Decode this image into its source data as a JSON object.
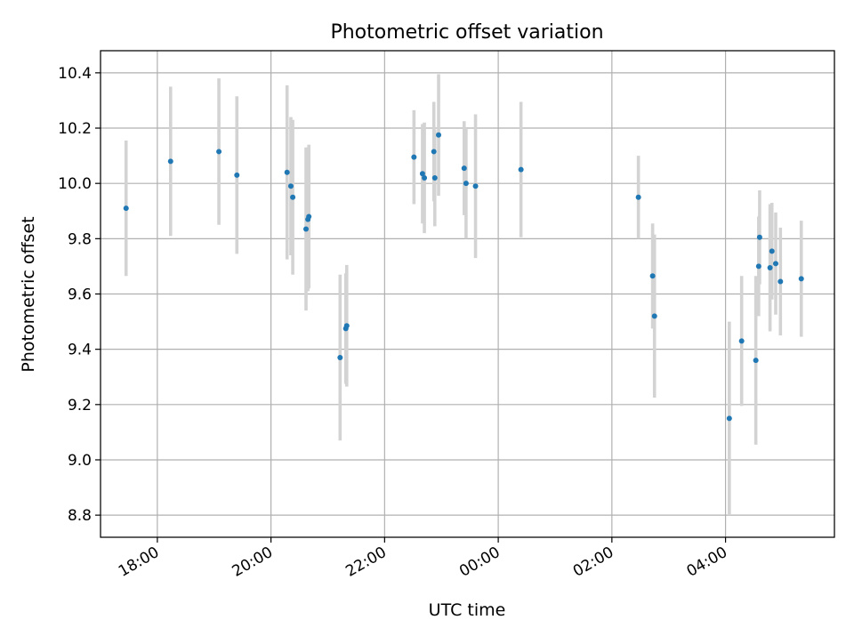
{
  "chart_data": {
    "type": "scatter",
    "title": "Photometric offset variation",
    "xlabel": "UTC time",
    "ylabel": "Photometric offset",
    "x_axis": {
      "kind": "time",
      "start": "2000-01-01T17:00",
      "end": "2000-01-02T05:55",
      "ticks": [
        {
          "t": "2000-01-01T18:00",
          "label": "18:00"
        },
        {
          "t": "2000-01-01T20:00",
          "label": "20:00"
        },
        {
          "t": "2000-01-01T22:00",
          "label": "22:00"
        },
        {
          "t": "2000-01-02T00:00",
          "label": "00:00"
        },
        {
          "t": "2000-01-02T02:00",
          "label": "02:00"
        },
        {
          "t": "2000-01-02T04:00",
          "label": "04:00"
        }
      ]
    },
    "ylim": [
      8.72,
      10.48
    ],
    "yticks": [
      "8.8",
      "9.0",
      "9.2",
      "9.4",
      "9.6",
      "9.8",
      "10.0",
      "10.2",
      "10.4"
    ],
    "grid": true,
    "colors": {
      "point": "#1f77b4",
      "errorbar": "#d3d3d3",
      "grid": "#b0b0b0"
    },
    "points": [
      {
        "t": "2000-01-01T17:27",
        "y": 9.91,
        "err": 0.245
      },
      {
        "t": "2000-01-01T18:14",
        "y": 10.08,
        "err": 0.27
      },
      {
        "t": "2000-01-01T19:05",
        "y": 10.115,
        "err": 0.265
      },
      {
        "t": "2000-01-01T19:24",
        "y": 10.03,
        "err": 0.285
      },
      {
        "t": "2000-01-01T20:17",
        "y": 10.04,
        "err": 0.315
      },
      {
        "t": "2000-01-01T20:21",
        "y": 9.99,
        "err": 0.25
      },
      {
        "t": "2000-01-01T20:23",
        "y": 9.95,
        "err": 0.28
      },
      {
        "t": "2000-01-01T20:37",
        "y": 9.835,
        "err": 0.295
      },
      {
        "t": "2000-01-01T20:39",
        "y": 9.87,
        "err": 0.26
      },
      {
        "t": "2000-01-01T20:40",
        "y": 9.88,
        "err": 0.26
      },
      {
        "t": "2000-01-01T21:13",
        "y": 9.37,
        "err": 0.3
      },
      {
        "t": "2000-01-01T21:19",
        "y": 9.475,
        "err": 0.2
      },
      {
        "t": "2000-01-01T21:20",
        "y": 9.485,
        "err": 0.22
      },
      {
        "t": "2000-01-01T22:31",
        "y": 10.095,
        "err": 0.17
      },
      {
        "t": "2000-01-01T22:40",
        "y": 10.035,
        "err": 0.18
      },
      {
        "t": "2000-01-01T22:42",
        "y": 10.02,
        "err": 0.2
      },
      {
        "t": "2000-01-01T22:52",
        "y": 10.115,
        "err": 0.18
      },
      {
        "t": "2000-01-01T22:53",
        "y": 10.02,
        "err": 0.175
      },
      {
        "t": "2000-01-01T22:57",
        "y": 10.175,
        "err": 0.22
      },
      {
        "t": "2000-01-01T23:24",
        "y": 10.055,
        "err": 0.17
      },
      {
        "t": "2000-01-01T23:26",
        "y": 10.0,
        "err": 0.2
      },
      {
        "t": "2000-01-01T23:36",
        "y": 9.99,
        "err": 0.26
      },
      {
        "t": "2000-01-02T00:24",
        "y": 10.05,
        "err": 0.245
      },
      {
        "t": "2000-01-02T02:28",
        "y": 9.95,
        "err": 0.15
      },
      {
        "t": "2000-01-02T02:43",
        "y": 9.665,
        "err": 0.19
      },
      {
        "t": "2000-01-02T02:45",
        "y": 9.52,
        "err": 0.295
      },
      {
        "t": "2000-01-02T04:04",
        "y": 9.15,
        "err": 0.35
      },
      {
        "t": "2000-01-02T04:17",
        "y": 9.43,
        "err": 0.235
      },
      {
        "t": "2000-01-02T04:32",
        "y": 9.36,
        "err": 0.305
      },
      {
        "t": "2000-01-02T04:35",
        "y": 9.7,
        "err": 0.18
      },
      {
        "t": "2000-01-02T04:36",
        "y": 9.805,
        "err": 0.17
      },
      {
        "t": "2000-01-02T04:47",
        "y": 9.695,
        "err": 0.23
      },
      {
        "t": "2000-01-02T04:49",
        "y": 9.755,
        "err": 0.175
      },
      {
        "t": "2000-01-02T04:53",
        "y": 9.71,
        "err": 0.185
      },
      {
        "t": "2000-01-02T04:58",
        "y": 9.645,
        "err": 0.195
      },
      {
        "t": "2000-01-02T05:20",
        "y": 9.655,
        "err": 0.21
      }
    ]
  }
}
